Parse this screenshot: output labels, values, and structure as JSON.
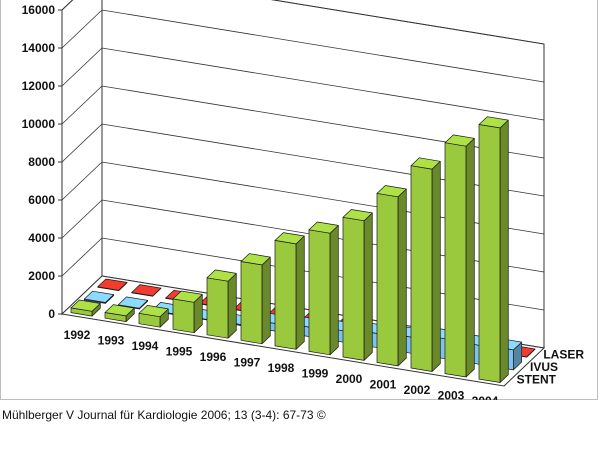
{
  "chart_data": {
    "type": "bar",
    "categories": [
      "1992",
      "1993",
      "1994",
      "1995",
      "1996",
      "1997",
      "1998",
      "1999",
      "2000",
      "2001",
      "2002",
      "2003",
      "2004"
    ],
    "series": [
      {
        "name": "STENT",
        "values": [
          250,
          300,
          550,
          1600,
          3000,
          4150,
          5550,
          6400,
          7350,
          8900,
          10650,
          12150,
          13400
        ],
        "color": "#9bc93e"
      },
      {
        "name": "IVUS",
        "values": [
          50,
          40,
          40,
          30,
          50,
          400,
          500,
          600,
          750,
          850,
          1050,
          1000,
          1050
        ],
        "color": "#7dc3ee"
      },
      {
        "name": "LASER",
        "values": [
          25,
          20,
          20,
          20,
          20,
          20,
          25,
          25,
          20,
          20,
          25,
          25,
          20
        ],
        "color": "#d9362b"
      }
    ],
    "ylim": [
      0,
      16000
    ],
    "yticks": [
      "0",
      "2000",
      "4000",
      "6000",
      "8000",
      "10000",
      "12000",
      "14000",
      "16000"
    ],
    "grid": true,
    "legend": "series labels along right depth axis"
  },
  "citation": "Mühlberger V Journal für Kardiologie 2006; 13 (3-4): 67-73 ©"
}
